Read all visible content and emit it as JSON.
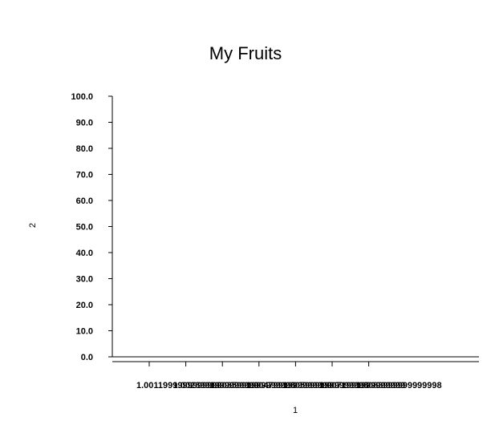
{
  "chart_data": {
    "type": "bar",
    "title": "My Fruits",
    "xlabel": "1",
    "ylabel": "2",
    "ylim": [
      0,
      100
    ],
    "y_ticks": [
      "0.0",
      "10.0",
      "20.0",
      "30.0",
      "40.0",
      "50.0",
      "60.0",
      "70.0",
      "80.0",
      "90.0",
      "100.0"
    ],
    "x_ticks": [
      "1.0011999999999999",
      "1.0023999999999999",
      "1.0035999999999998",
      "1.0047999999999999",
      "1.0059999999999998",
      "1.0071999999999999",
      "1.0083999999999998"
    ],
    "categories": [],
    "values": [],
    "grid": false,
    "legend": "none"
  }
}
